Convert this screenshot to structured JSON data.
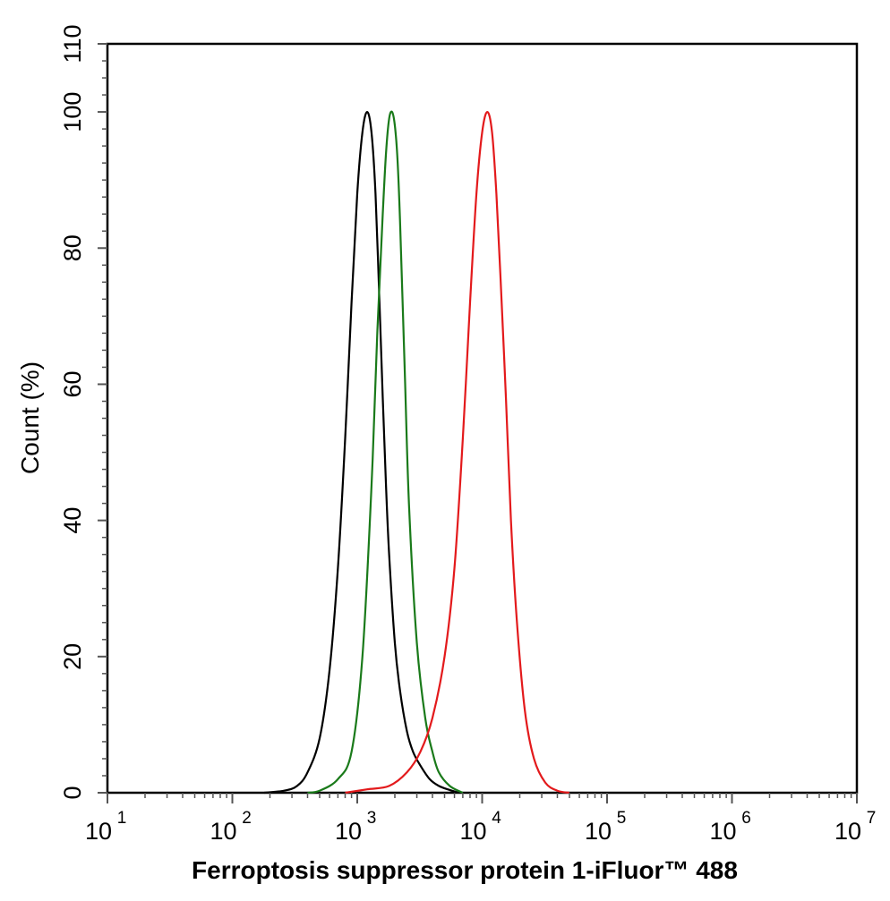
{
  "chart_data": {
    "type": "line",
    "title": "",
    "xlabel": "Ferroptosis suppressor protein 1-iFluor™ 488",
    "ylabel": "Count  (%)",
    "xscale": "log",
    "xlim": [
      10,
      10000000
    ],
    "ylim": [
      0,
      110
    ],
    "grid": false,
    "legend": "none",
    "x_ticks": [
      {
        "base": "10",
        "exp": "1"
      },
      {
        "base": "10",
        "exp": "2"
      },
      {
        "base": "10",
        "exp": "3"
      },
      {
        "base": "10",
        "exp": "4"
      },
      {
        "base": "10",
        "exp": "5"
      },
      {
        "base": "10",
        "exp": "6"
      },
      {
        "base": "10",
        "exp": "7"
      }
    ],
    "y_ticks": [
      "0",
      "20",
      "40",
      "60",
      "80",
      "100",
      "110"
    ],
    "series": [
      {
        "color": "#000000",
        "x": [
          180,
          260,
          330,
          400,
          500,
          600,
          700,
          800,
          900,
          1000,
          1100,
          1200,
          1300,
          1400,
          1500,
          1600,
          1700,
          1800,
          2000,
          2200,
          2500,
          2800,
          3200,
          3800,
          4500,
          5500,
          6500
        ],
        "y": [
          0,
          0.3,
          1,
          3,
          8,
          18,
          33,
          52,
          72,
          88,
          97,
          100,
          97,
          88,
          73,
          58,
          45,
          35,
          22,
          15,
          9,
          6,
          4,
          2,
          1,
          0.4,
          0
        ]
      },
      {
        "color": "#1a7a1a",
        "x": [
          400,
          500,
          700,
          900,
          1100,
          1300,
          1450,
          1600,
          1700,
          1800,
          1900,
          2000,
          2100,
          2200,
          2400,
          2600,
          3000,
          3500,
          4000,
          4500,
          5500,
          7000
        ],
        "y": [
          0,
          0.3,
          2,
          6,
          20,
          45,
          68,
          85,
          94,
          99,
          100,
          98,
          93,
          84,
          62,
          42,
          22,
          11,
          6,
          3,
          1,
          0
        ]
      },
      {
        "color": "#e31a1c",
        "x": [
          800,
          1200,
          1800,
          2500,
          3200,
          4000,
          5000,
          6000,
          7000,
          8000,
          9000,
          10000,
          11000,
          12000,
          13000,
          14000,
          15500,
          17000,
          19000,
          22000,
          26000,
          32000,
          40000,
          50000
        ],
        "y": [
          0,
          0.5,
          1,
          3,
          6,
          11,
          20,
          33,
          52,
          72,
          88,
          97,
          100,
          97,
          88,
          76,
          58,
          40,
          25,
          12,
          5,
          1.5,
          0.3,
          0
        ]
      }
    ]
  }
}
